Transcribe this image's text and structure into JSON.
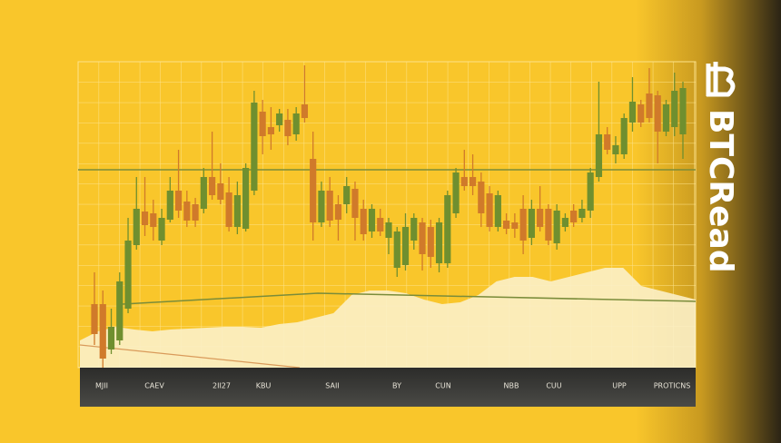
{
  "chart_data": {
    "type": "candlestick",
    "ylim": [
      -15,
      337
    ],
    "up_color": "#6f8f2f",
    "down_color": "#d07a2a",
    "open": [
      70,
      70,
      20,
      30,
      65,
      135,
      172,
      170,
      140,
      163,
      195,
      183,
      180,
      175,
      210,
      203,
      193,
      155,
      153,
      195,
      282,
      265,
      267,
      273,
      257,
      290,
      230,
      160,
      195,
      180,
      180,
      197,
      175,
      150,
      165,
      143,
      110,
      113,
      140,
      160,
      155,
      115,
      115,
      170,
      210,
      210,
      205,
      192,
      155,
      162,
      160,
      175,
      143,
      175,
      175,
      137,
      155,
      173,
      165,
      173,
      210,
      257,
      235,
      235,
      270,
      290,
      302,
      300,
      260,
      265,
      257
    ],
    "high": [
      105,
      85,
      65,
      105,
      165,
      210,
      210,
      185,
      175,
      210,
      240,
      195,
      187,
      220,
      260,
      225,
      210,
      205,
      225,
      305,
      295,
      287,
      285,
      285,
      287,
      333,
      260,
      205,
      210,
      190,
      210,
      205,
      185,
      180,
      175,
      165,
      155,
      170,
      170,
      165,
      163,
      165,
      195,
      220,
      240,
      235,
      215,
      200,
      195,
      170,
      170,
      190,
      185,
      200,
      180,
      180,
      170,
      180,
      185,
      220,
      315,
      265,
      255,
      280,
      320,
      295,
      330,
      305,
      295,
      325,
      315
    ],
    "low": [
      25,
      -10,
      15,
      25,
      60,
      130,
      145,
      140,
      135,
      160,
      165,
      155,
      155,
      170,
      185,
      180,
      150,
      147,
      150,
      190,
      235,
      240,
      260,
      245,
      250,
      270,
      140,
      155,
      155,
      140,
      170,
      140,
      140,
      143,
      145,
      125,
      100,
      107,
      130,
      107,
      110,
      105,
      110,
      165,
      195,
      190,
      155,
      150,
      150,
      147,
      143,
      125,
      135,
      150,
      135,
      130,
      150,
      155,
      160,
      165,
      205,
      235,
      225,
      230,
      260,
      265,
      270,
      225,
      255,
      255,
      230
    ],
    "close": [
      37,
      10,
      45,
      95,
      140,
      175,
      157,
      155,
      165,
      195,
      173,
      162,
      162,
      210,
      190,
      185,
      155,
      190,
      220,
      292,
      255,
      257,
      280,
      255,
      280,
      275,
      160,
      195,
      162,
      163,
      200,
      165,
      147,
      175,
      150,
      160,
      150,
      155,
      165,
      125,
      122,
      160,
      190,
      215,
      200,
      200,
      170,
      155,
      190,
      153,
      153,
      140,
      175,
      155,
      140,
      173,
      165,
      160,
      175,
      215,
      257,
      240,
      245,
      275,
      293,
      270,
      275,
      260,
      290,
      305,
      308
    ],
    "volume": {
      "color": "#fbf0c8",
      "values": [
        30,
        40,
        45,
        42,
        40,
        42,
        43,
        44,
        45,
        45,
        44,
        48,
        50,
        55,
        60,
        80,
        85,
        85,
        82,
        75,
        70,
        72,
        80,
        95,
        100,
        100,
        95,
        100,
        105,
        110,
        110,
        90,
        85,
        80,
        75
      ]
    },
    "x_labels": [
      "MJII",
      "CAEV",
      "2II27",
      "KBU",
      "SAII",
      "BY",
      "CUN",
      "NBB",
      "CUU",
      "UPP",
      "PROTICNS"
    ]
  },
  "brand": "BTCRead"
}
